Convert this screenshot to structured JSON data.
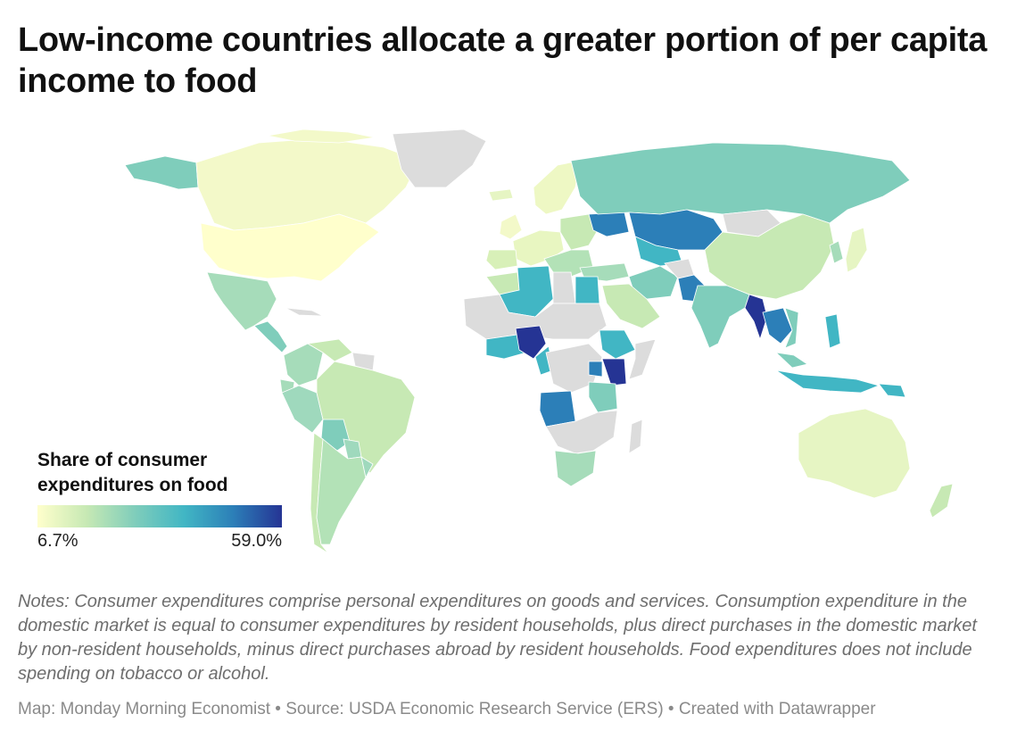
{
  "title": "Low-income countries allocate a greater portion of per capita income to food",
  "legend": {
    "title": "Share of consumer expenditures on food",
    "min_label": "6.7%",
    "max_label": "59.0%",
    "scale_colors": [
      "#ffffcc",
      "#c7e9b4",
      "#7fcdbb",
      "#41b6c4",
      "#2c7fb8",
      "#253494"
    ],
    "no_data_color": "#dcdcdc"
  },
  "notes": "Notes: Consumer expenditures comprise personal expenditures on goods and services. Consumption expenditure in the domestic market is equal to consumer expenditures by resident households, plus direct purchases in the domestic market by non-resident households, minus direct purchases abroad by resident households. Food expenditures does not include spending on tobacco or alcohol.",
  "footer": "Map: Monday Morning Economist • Source: USDA Economic Research Service (ERS) • Created with Datawrapper"
}
